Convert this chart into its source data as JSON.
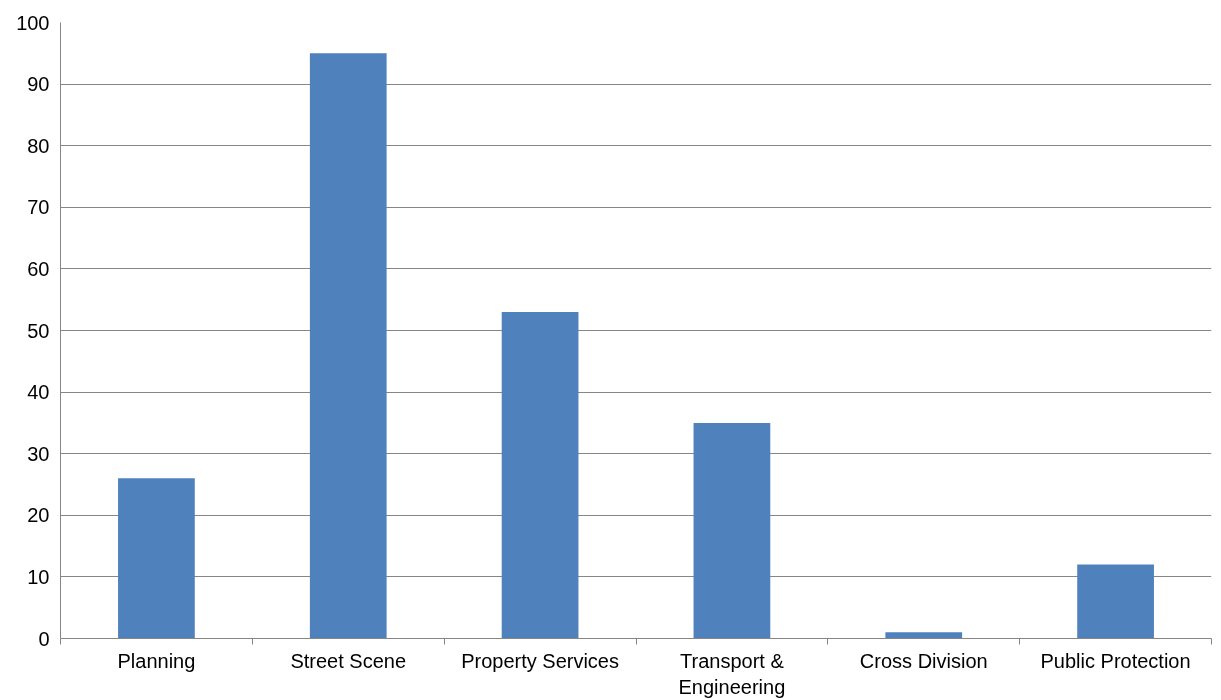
{
  "chart_data": {
    "type": "bar",
    "categories": [
      "Planning",
      "Street Scene",
      "Property Services",
      "Transport & Engineering",
      "Cross Division",
      "Public Protection"
    ],
    "values": [
      26,
      95,
      53,
      35,
      1,
      12
    ],
    "color": "#4f81bd",
    "ylim": [
      0,
      100
    ],
    "yticks": [
      0,
      10,
      20,
      30,
      40,
      50,
      60,
      70,
      80,
      90,
      100
    ],
    "grid": "y"
  }
}
